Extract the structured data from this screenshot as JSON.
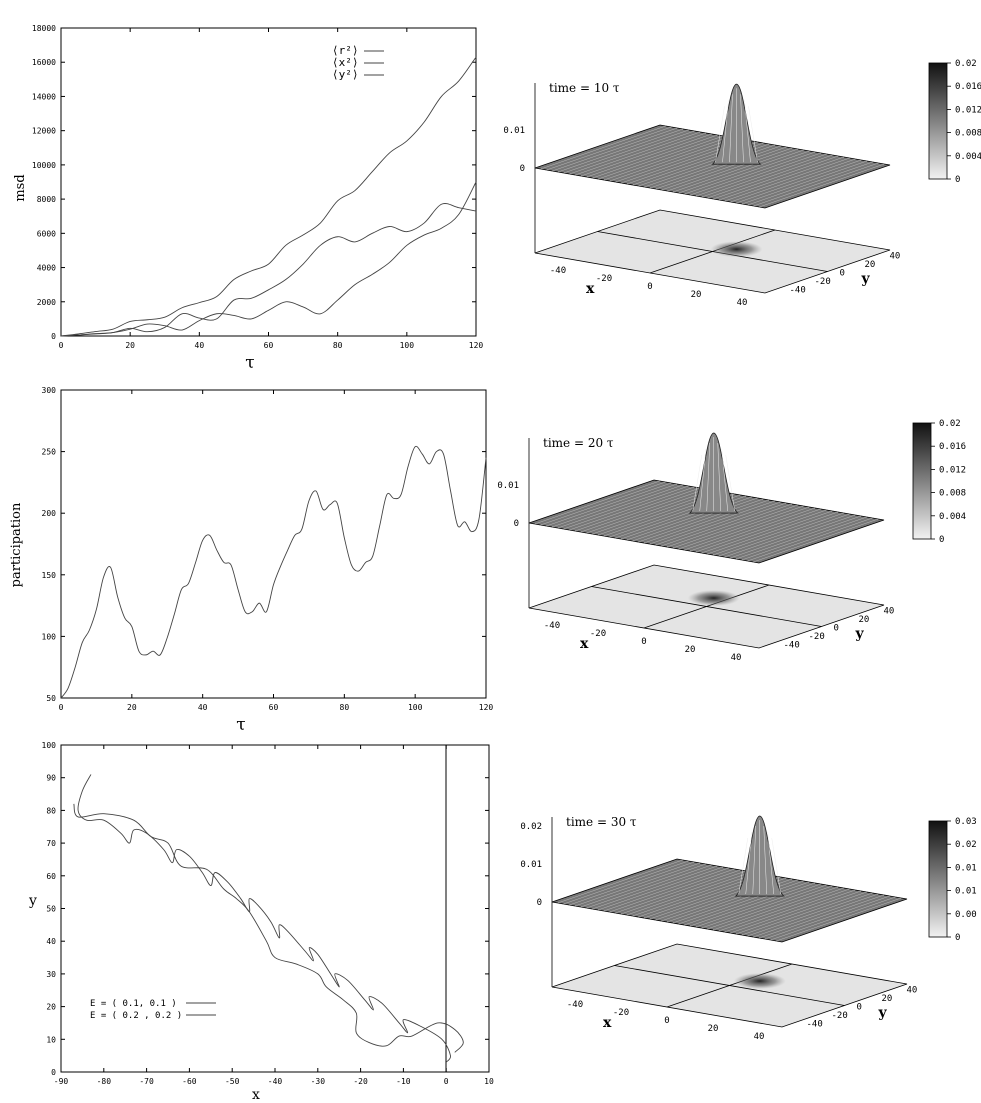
{
  "chart_data": [
    {
      "id": "msd",
      "type": "line",
      "xlabel": "τ",
      "ylabel": "msd",
      "xlim": [
        0,
        120
      ],
      "ylim": [
        0,
        18000
      ],
      "xticks": [
        "0",
        "20",
        "40",
        "60",
        "80",
        "100",
        "120"
      ],
      "yticks": [
        "0",
        "2000",
        "4000",
        "6000",
        "8000",
        "10000",
        "12000",
        "14000",
        "16000",
        "18000"
      ],
      "legend_position": "top-right",
      "grid": false,
      "series": [
        {
          "name": "⟨r²⟩",
          "x": [
            0,
            5,
            10,
            15,
            20,
            25,
            30,
            35,
            40,
            45,
            50,
            55,
            60,
            65,
            70,
            75,
            80,
            85,
            90,
            95,
            100,
            105,
            110,
            115,
            120
          ],
          "values": [
            0,
            120,
            260,
            400,
            850,
            950,
            1100,
            1650,
            1950,
            2300,
            3300,
            3800,
            4200,
            5300,
            5900,
            6600,
            7900,
            8500,
            9600,
            10700,
            11400,
            12500,
            14000,
            14900,
            16300
          ]
        },
        {
          "name": "⟨x²⟩",
          "x": [
            0,
            5,
            10,
            15,
            20,
            25,
            30,
            35,
            40,
            45,
            50,
            55,
            60,
            65,
            70,
            75,
            80,
            85,
            90,
            95,
            100,
            105,
            110,
            115,
            120
          ],
          "values": [
            0,
            60,
            140,
            200,
            400,
            700,
            600,
            350,
            900,
            1300,
            1200,
            1000,
            1500,
            2000,
            1700,
            1300,
            2100,
            3000,
            3600,
            4300,
            5300,
            5900,
            6300,
            7100,
            9000
          ]
        },
        {
          "name": "⟨y²⟩",
          "x": [
            0,
            5,
            10,
            15,
            20,
            25,
            30,
            35,
            40,
            45,
            50,
            55,
            60,
            65,
            70,
            75,
            80,
            85,
            90,
            95,
            100,
            105,
            110,
            115,
            120
          ],
          "values": [
            0,
            60,
            120,
            200,
            450,
            250,
            500,
            1300,
            1050,
            1000,
            2100,
            2200,
            2700,
            3300,
            4200,
            5300,
            5800,
            5500,
            6000,
            6400,
            6100,
            6600,
            7700,
            7500,
            7300
          ]
        }
      ]
    },
    {
      "id": "participation",
      "type": "line",
      "xlabel": "τ",
      "ylabel": "participation",
      "xlim": [
        0,
        120
      ],
      "ylim": [
        50,
        300
      ],
      "xticks": [
        "0",
        "20",
        "40",
        "60",
        "80",
        "100",
        "120"
      ],
      "yticks": [
        "50",
        "100",
        "150",
        "200",
        "250",
        "300"
      ],
      "grid": false,
      "series": [
        {
          "x": [
            0,
            2,
            4,
            6,
            8,
            10,
            12,
            14,
            16,
            18,
            20,
            22,
            24,
            26,
            28,
            30,
            32,
            34,
            36,
            38,
            40,
            42,
            44,
            46,
            48,
            50,
            52,
            54,
            56,
            58,
            60,
            62,
            64,
            66,
            68,
            70,
            72,
            74,
            76,
            78,
            80,
            82,
            84,
            86,
            88,
            90,
            92,
            94,
            96,
            98,
            100,
            102,
            104,
            106,
            108,
            110,
            112,
            114,
            116,
            118,
            120
          ],
          "values": [
            50,
            58,
            75,
            95,
            105,
            122,
            148,
            156,
            132,
            115,
            108,
            88,
            85,
            88,
            85,
            99,
            118,
            138,
            143,
            160,
            178,
            182,
            170,
            160,
            158,
            138,
            120,
            120,
            127,
            120,
            142,
            157,
            170,
            182,
            187,
            210,
            218,
            203,
            207,
            208,
            180,
            158,
            153,
            160,
            165,
            190,
            215,
            212,
            215,
            238,
            254,
            248,
            240,
            250,
            248,
            218,
            190,
            193,
            185,
            195,
            245
          ]
        }
      ]
    },
    {
      "id": "trajectory",
      "type": "line",
      "xlabel": "x",
      "ylabel": "y",
      "xlim": [
        -90,
        10
      ],
      "ylim": [
        0,
        100
      ],
      "xticks": [
        "-90",
        "-80",
        "-70",
        "-60",
        "-50",
        "-40",
        "-30",
        "-20",
        "-10",
        "0",
        "10"
      ],
      "yticks": [
        "0",
        "10",
        "20",
        "30",
        "40",
        "50",
        "60",
        "70",
        "80",
        "90",
        "100"
      ],
      "legend_position": "bottom-left",
      "grid": false,
      "series": [
        {
          "name": "E = ( 0.1, 0.1 )",
          "x": [
            -83,
            -85,
            -86,
            -84,
            -80,
            -76,
            -74,
            -73,
            -70,
            -66,
            -64,
            -63,
            -60,
            -57,
            -55,
            -54,
            -51,
            -48,
            -46,
            -46,
            -44,
            -41,
            -39,
            -39,
            -37,
            -33,
            -31,
            -32,
            -30,
            -27,
            -25,
            -26,
            -23,
            -19,
            -17,
            -18,
            -15,
            -11,
            -9,
            -10,
            -6,
            -1,
            1,
            0
          ],
          "values": [
            91,
            86,
            80,
            77,
            77,
            73,
            70,
            74,
            73,
            68,
            64,
            68,
            66,
            61,
            57,
            61,
            58,
            53,
            49,
            53,
            51,
            46,
            41,
            45,
            43,
            37,
            34,
            38,
            36,
            30,
            26,
            30,
            28,
            22,
            19,
            23,
            21,
            15,
            12,
            16,
            14,
            10,
            5,
            3
          ]
        },
        {
          "name": "E = ( 0.2 , 0.2 )",
          "x": [
            -87,
            -86,
            -80,
            -73,
            -69,
            -65,
            -62,
            -56,
            -52,
            -49,
            -46,
            -42,
            -40,
            -35,
            -30,
            -28,
            -24,
            -21,
            -21,
            -18,
            -14,
            -11,
            -8,
            -2,
            2,
            4,
            2
          ],
          "values": [
            82,
            78,
            79,
            77,
            72,
            70,
            63,
            62,
            56,
            53,
            49,
            40,
            35,
            33,
            30,
            26,
            22,
            18,
            12,
            9,
            8,
            11,
            11,
            15,
            13,
            9,
            6
          ]
        }
      ]
    },
    {
      "id": "surface-10",
      "type": "heatmap",
      "title": "time = 10 τ",
      "xlabel": "x",
      "ylabel": "y",
      "xticks": [
        "-40",
        "-20",
        "0",
        "20",
        "40"
      ],
      "yticks": [
        "-40",
        "-20",
        "0",
        "20",
        "40"
      ],
      "zticks": [
        "0",
        "0.01"
      ],
      "colorbar_ticks": [
        "0",
        "0.004",
        "0.008",
        "0.012",
        "0.016",
        "0.02"
      ],
      "peak": {
        "x": 5,
        "y": 10,
        "value": 0.02
      }
    },
    {
      "id": "surface-20",
      "type": "heatmap",
      "title": "time = 20  τ",
      "xlabel": "x",
      "ylabel": "y",
      "xticks": [
        "-40",
        "-20",
        "0",
        "20",
        "40"
      ],
      "yticks": [
        "-40",
        "-20",
        "0",
        "20",
        "40"
      ],
      "zticks": [
        "0",
        "0.01"
      ],
      "colorbar_ticks": [
        "0",
        "0.004",
        "0.008",
        "0.012",
        "0.016",
        "0.02"
      ],
      "peak": {
        "x": -5,
        "y": 15,
        "value": 0.02
      }
    },
    {
      "id": "surface-30",
      "type": "heatmap",
      "title": "time = 30 τ",
      "xlabel": "x",
      "ylabel": "y",
      "xticks": [
        "-40",
        "-20",
        "0",
        "20",
        "40"
      ],
      "yticks": [
        "-40",
        "-20",
        "0",
        "20",
        "40"
      ],
      "zticks": [
        "0",
        "0.01",
        "0.02"
      ],
      "colorbar_ticks": [
        "0",
        "0.00",
        "0.01",
        "0.01",
        "0.02",
        "0.03"
      ],
      "peak": {
        "x": 5,
        "y": 15,
        "value": 0.03
      }
    }
  ],
  "colors": {
    "line": "#444444",
    "axis": "#000000",
    "surface_fill": "#e4e4e4",
    "mesh": "#555555",
    "colorbar_top": "#111111",
    "colorbar_bottom": "#f2f2f2"
  }
}
